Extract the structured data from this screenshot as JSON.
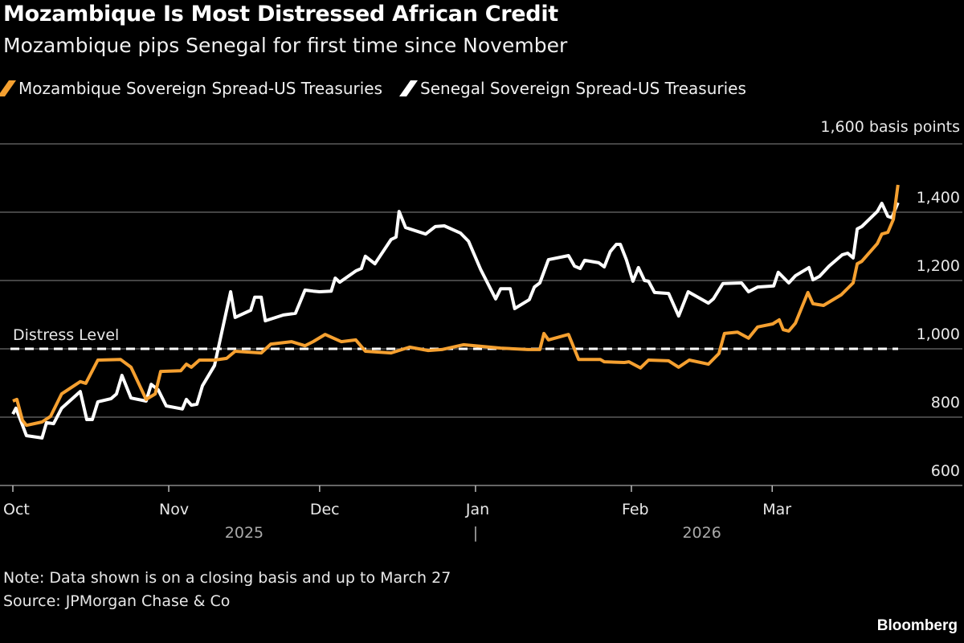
{
  "header": {
    "title": "Mozambique Is Most Distressed African Credit",
    "subtitle": "Mozambique pips Senegal for first time since November"
  },
  "colors": {
    "mozambique": "#f5a030",
    "senegal": "#ffffff",
    "grid": "#5a5a5a",
    "background": "#000000"
  },
  "chart_data": {
    "type": "line",
    "title": "Mozambique Is Most Distressed African Credit",
    "x_unit": "days since 2025-10-01",
    "ylabel": "1,600 basis points",
    "ylim": [
      600,
      1600
    ],
    "yticks": [
      {
        "value": 600,
        "label": "600"
      },
      {
        "value": 800,
        "label": "800"
      },
      {
        "value": 1000,
        "label": "1,000"
      },
      {
        "value": 1200,
        "label": "1,200"
      },
      {
        "value": 1400,
        "label": "1,400"
      }
    ],
    "top_label": "1,600 basis points",
    "xticks": [
      {
        "day": 0,
        "label": "Oct"
      },
      {
        "day": 31,
        "label": "Nov"
      },
      {
        "day": 61,
        "label": "Dec"
      },
      {
        "day": 92,
        "label": "Jan"
      },
      {
        "day": 123,
        "label": "Feb"
      },
      {
        "day": 151,
        "label": "Mar"
      }
    ],
    "years": [
      {
        "day": 46,
        "label": "2025"
      },
      {
        "day": 92,
        "label": "|"
      },
      {
        "day": 137,
        "label": "2026"
      }
    ],
    "grid": true,
    "legend_placement": "top-left",
    "annotation": {
      "label": "Distress Level",
      "value": 1000
    },
    "series": [
      {
        "name": "Mozambique Sovereign Spread-US Treasuries",
        "color": "#f5a030",
        "points": [
          [
            0,
            847
          ],
          [
            0.8,
            852
          ],
          [
            1.9,
            791
          ],
          [
            2.7,
            776
          ],
          [
            5.8,
            786
          ],
          [
            7.5,
            802
          ],
          [
            9.7,
            868
          ],
          [
            13.4,
            904
          ],
          [
            14.5,
            899
          ],
          [
            16.9,
            967
          ],
          [
            21.4,
            969
          ],
          [
            23.5,
            946
          ],
          [
            26.5,
            852
          ],
          [
            28.3,
            868
          ],
          [
            29.4,
            934
          ],
          [
            33.4,
            936
          ],
          [
            34.5,
            955
          ],
          [
            35.5,
            946
          ],
          [
            37.1,
            967
          ],
          [
            40.1,
            967
          ],
          [
            42.5,
            972
          ],
          [
            44.2,
            993
          ],
          [
            49.4,
            988
          ],
          [
            51.3,
            1014
          ],
          [
            55.4,
            1021
          ],
          [
            58.1,
            1009
          ],
          [
            59.7,
            1021
          ],
          [
            62.1,
            1042
          ],
          [
            65.3,
            1021
          ],
          [
            68.2,
            1026
          ],
          [
            70.1,
            993
          ],
          [
            75.2,
            988
          ],
          [
            78.9,
            1005
          ],
          [
            82.6,
            995
          ],
          [
            85.3,
            998
          ],
          [
            89.6,
            1012
          ],
          [
            97,
            1002
          ],
          [
            102.4,
            998
          ],
          [
            104.8,
            998
          ],
          [
            105.6,
            1045
          ],
          [
            106.5,
            1026
          ],
          [
            110.5,
            1042
          ],
          [
            112.5,
            969
          ],
          [
            116.8,
            969
          ],
          [
            117.6,
            962
          ],
          [
            121.6,
            960
          ],
          [
            122.5,
            962
          ],
          [
            124.8,
            944
          ],
          [
            126.4,
            967
          ],
          [
            130.4,
            965
          ],
          [
            132.4,
            946
          ],
          [
            134.5,
            967
          ],
          [
            138.3,
            955
          ],
          [
            140.4,
            986
          ],
          [
            141.5,
            1045
          ],
          [
            144.1,
            1049
          ],
          [
            146.3,
            1031
          ],
          [
            148.1,
            1064
          ],
          [
            151.1,
            1073
          ],
          [
            152.4,
            1085
          ],
          [
            153.2,
            1056
          ],
          [
            154.3,
            1052
          ],
          [
            155.6,
            1075
          ],
          [
            158.1,
            1165
          ],
          [
            159.1,
            1132
          ],
          [
            161.2,
            1127
          ],
          [
            164.7,
            1158
          ],
          [
            167.1,
            1193
          ],
          [
            167.9,
            1249
          ],
          [
            168.8,
            1256
          ],
          [
            171.9,
            1308
          ],
          [
            172.8,
            1336
          ],
          [
            174,
            1341
          ],
          [
            175.1,
            1379
          ],
          [
            176,
            1480
          ]
        ]
      },
      {
        "name": "Senegal Sovereign Spread-US Treasuries",
        "color": "#ffffff",
        "points": [
          [
            0,
            809
          ],
          [
            0.6,
            826
          ],
          [
            1.8,
            781
          ],
          [
            2.7,
            746
          ],
          [
            5.8,
            739
          ],
          [
            6.7,
            784
          ],
          [
            8.1,
            781
          ],
          [
            9.7,
            826
          ],
          [
            13.4,
            875
          ],
          [
            14.7,
            793
          ],
          [
            15.8,
            793
          ],
          [
            16.9,
            845
          ],
          [
            19.5,
            854
          ],
          [
            20.6,
            868
          ],
          [
            21.7,
            922
          ],
          [
            23.5,
            856
          ],
          [
            26.5,
            847
          ],
          [
            27.5,
            896
          ],
          [
            28.9,
            880
          ],
          [
            30.5,
            833
          ],
          [
            33.7,
            824
          ],
          [
            34.5,
            852
          ],
          [
            35.5,
            835
          ],
          [
            36.6,
            838
          ],
          [
            37.7,
            892
          ],
          [
            40.1,
            951
          ],
          [
            43.3,
            1167
          ],
          [
            44.2,
            1092
          ],
          [
            47.3,
            1113
          ],
          [
            48.1,
            1151
          ],
          [
            49.4,
            1151
          ],
          [
            50.2,
            1082
          ],
          [
            53.8,
            1099
          ],
          [
            56.2,
            1104
          ],
          [
            58.1,
            1172
          ],
          [
            59.7,
            1169
          ],
          [
            61,
            1167
          ],
          [
            63.3,
            1169
          ],
          [
            64.1,
            1207
          ],
          [
            65,
            1195
          ],
          [
            68.2,
            1228
          ],
          [
            69.3,
            1235
          ],
          [
            70.1,
            1271
          ],
          [
            72,
            1249
          ],
          [
            75.2,
            1320
          ],
          [
            76.2,
            1327
          ],
          [
            76.8,
            1402
          ],
          [
            78.1,
            1355
          ],
          [
            82.1,
            1336
          ],
          [
            84,
            1358
          ],
          [
            85.8,
            1360
          ],
          [
            89,
            1339
          ],
          [
            90.6,
            1315
          ],
          [
            93,
            1233
          ],
          [
            96,
            1146
          ],
          [
            97,
            1176
          ],
          [
            98.9,
            1176
          ],
          [
            99.8,
            1118
          ],
          [
            102.7,
            1144
          ],
          [
            103.7,
            1181
          ],
          [
            104.8,
            1193
          ],
          [
            106.5,
            1261
          ],
          [
            110.5,
            1273
          ],
          [
            111.7,
            1242
          ],
          [
            112.8,
            1235
          ],
          [
            113.7,
            1259
          ],
          [
            116.5,
            1252
          ],
          [
            117.6,
            1240
          ],
          [
            118.8,
            1285
          ],
          [
            120,
            1306
          ],
          [
            120.8,
            1306
          ],
          [
            122,
            1261
          ],
          [
            123.3,
            1198
          ],
          [
            124.4,
            1238
          ],
          [
            125.6,
            1200
          ],
          [
            126.4,
            1198
          ],
          [
            127.6,
            1165
          ],
          [
            130.4,
            1162
          ],
          [
            132.4,
            1096
          ],
          [
            134.3,
            1167
          ],
          [
            138.3,
            1134
          ],
          [
            139.3,
            1146
          ],
          [
            141.2,
            1191
          ],
          [
            144.9,
            1193
          ],
          [
            146.3,
            1167
          ],
          [
            148.1,
            1181
          ],
          [
            151.3,
            1184
          ],
          [
            152.2,
            1224
          ],
          [
            154.3,
            1193
          ],
          [
            155.6,
            1214
          ],
          [
            158.3,
            1238
          ],
          [
            159.1,
            1202
          ],
          [
            160.4,
            1212
          ],
          [
            162.3,
            1242
          ],
          [
            164.9,
            1275
          ],
          [
            166,
            1280
          ],
          [
            167.1,
            1266
          ],
          [
            167.9,
            1351
          ],
          [
            168.8,
            1358
          ],
          [
            171.9,
            1402
          ],
          [
            172.8,
            1426
          ],
          [
            174,
            1388
          ],
          [
            174.8,
            1384
          ],
          [
            176,
            1428
          ]
        ]
      }
    ]
  },
  "footer": {
    "note": "Note: Data shown is on a closing basis and up to March 27",
    "source": "Source: JPMorgan Chase & Co",
    "brand": "Bloomberg"
  }
}
